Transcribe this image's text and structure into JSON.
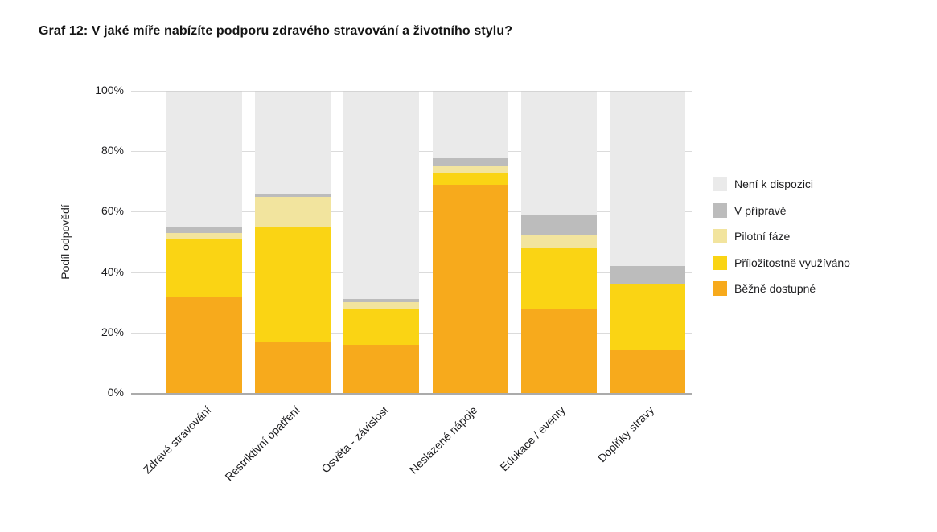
{
  "page": {
    "background": "#ffffff",
    "text_color": "#1d1d1f"
  },
  "chart_data": {
    "type": "bar",
    "stacked": true,
    "orientation": "vertical",
    "title": "Graf 12: V jaké míře nabízíte podporu zdravého stravování a životního stylu?",
    "xlabel": "",
    "ylabel": "Podíl odpovědí",
    "ylim": [
      0,
      100
    ],
    "y_unit": "%",
    "y_ticks": [
      0,
      20,
      40,
      60,
      80,
      100
    ],
    "y_tick_labels": [
      "0%",
      "20%",
      "40%",
      "60%",
      "80%",
      "100%"
    ],
    "grid": true,
    "legend_position": "right",
    "categories": [
      "Zdravé stravování",
      "Restriktivní opatření",
      "Osvěta - závislost",
      "Neslazené nápoje",
      "Edukace / eventy",
      "Doplňky stravy"
    ],
    "series": [
      {
        "name": "Není k dispozici",
        "color": "#eaeaea",
        "values": [
          45,
          34,
          69,
          22,
          41,
          58
        ]
      },
      {
        "name": "V přípravě",
        "color": "#bcbcbc",
        "values": [
          2,
          1,
          1,
          3,
          7,
          6
        ]
      },
      {
        "name": "Pilotní fáze",
        "color": "#f2e49e",
        "values": [
          2,
          10,
          2,
          2,
          4,
          0
        ]
      },
      {
        "name": "Příložitostně využíváno",
        "color": "#fad414",
        "values": [
          19,
          38,
          12,
          4,
          20,
          22
        ]
      },
      {
        "name": "Běžně dostupné",
        "color": "#f7aa1c",
        "values": [
          32,
          17,
          16,
          69,
          28,
          14
        ]
      }
    ],
    "axis_colors": {
      "gridline": "#dbdbdb",
      "baseline": "#ababab"
    }
  }
}
